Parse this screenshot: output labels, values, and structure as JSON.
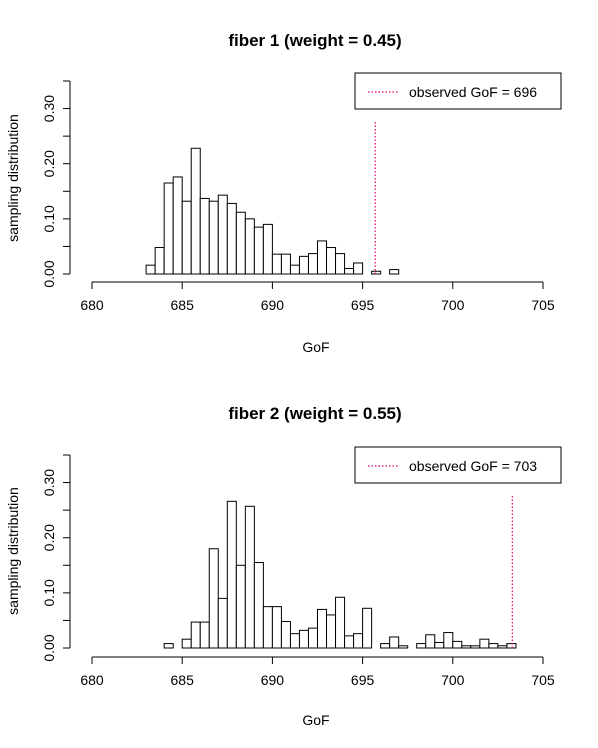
{
  "colors": {
    "observed_line": "#e0006e",
    "bar_fill": "#ffffff",
    "bar_stroke": "#000000"
  },
  "chart_data": [
    {
      "type": "bar",
      "title": "fiber 1 (weight = 0.45)",
      "xlabel": "GoF",
      "ylabel": "sampling distribution",
      "xlim": [
        680,
        705
      ],
      "ylim": [
        0,
        0.35
      ],
      "xticks": [
        "680",
        "685",
        "690",
        "695",
        "700",
        "705"
      ],
      "yticks": [
        "0.00",
        "0.10",
        "0.20",
        "0.30"
      ],
      "bin_width": 0.5,
      "bins": [
        {
          "x0": 683.0,
          "value": 0.016
        },
        {
          "x0": 683.5,
          "value": 0.048
        },
        {
          "x0": 684.0,
          "value": 0.165
        },
        {
          "x0": 684.5,
          "value": 0.176
        },
        {
          "x0": 685.0,
          "value": 0.132
        },
        {
          "x0": 685.5,
          "value": 0.228
        },
        {
          "x0": 686.0,
          "value": 0.137
        },
        {
          "x0": 686.5,
          "value": 0.132
        },
        {
          "x0": 687.0,
          "value": 0.143
        },
        {
          "x0": 687.5,
          "value": 0.128
        },
        {
          "x0": 688.0,
          "value": 0.112
        },
        {
          "x0": 688.5,
          "value": 0.1
        },
        {
          "x0": 689.0,
          "value": 0.085
        },
        {
          "x0": 689.5,
          "value": 0.09
        },
        {
          "x0": 690.0,
          "value": 0.036
        },
        {
          "x0": 690.5,
          "value": 0.036
        },
        {
          "x0": 691.0,
          "value": 0.016
        },
        {
          "x0": 691.5,
          "value": 0.032
        },
        {
          "x0": 692.0,
          "value": 0.037
        },
        {
          "x0": 692.5,
          "value": 0.06
        },
        {
          "x0": 693.0,
          "value": 0.048
        },
        {
          "x0": 693.5,
          "value": 0.037
        },
        {
          "x0": 694.0,
          "value": 0.01
        },
        {
          "x0": 694.5,
          "value": 0.02
        },
        {
          "x0": 695.0,
          "value": 0.0
        },
        {
          "x0": 695.5,
          "value": 0.005
        },
        {
          "x0": 696.0,
          "value": 0.0
        },
        {
          "x0": 696.5,
          "value": 0.008
        }
      ],
      "observed": {
        "value": 695.7,
        "label": "observed GoF = 696"
      },
      "legend_position": "top-right"
    },
    {
      "type": "bar",
      "title": "fiber 2 (weight = 0.55)",
      "xlabel": "GoF",
      "ylabel": "sampling distribution",
      "xlim": [
        680,
        705
      ],
      "ylim": [
        0,
        0.35
      ],
      "xticks": [
        "680",
        "685",
        "690",
        "695",
        "700",
        "705"
      ],
      "yticks": [
        "0.00",
        "0.10",
        "0.20",
        "0.30"
      ],
      "bin_width": 0.5,
      "bins": [
        {
          "x0": 684.0,
          "value": 0.008
        },
        {
          "x0": 684.5,
          "value": 0.0
        },
        {
          "x0": 685.0,
          "value": 0.016
        },
        {
          "x0": 685.5,
          "value": 0.047
        },
        {
          "x0": 686.0,
          "value": 0.047
        },
        {
          "x0": 686.5,
          "value": 0.18
        },
        {
          "x0": 687.0,
          "value": 0.09
        },
        {
          "x0": 687.5,
          "value": 0.266
        },
        {
          "x0": 688.0,
          "value": 0.15
        },
        {
          "x0": 688.5,
          "value": 0.257
        },
        {
          "x0": 689.0,
          "value": 0.155
        },
        {
          "x0": 689.5,
          "value": 0.075
        },
        {
          "x0": 690.0,
          "value": 0.075
        },
        {
          "x0": 690.5,
          "value": 0.048
        },
        {
          "x0": 691.0,
          "value": 0.026
        },
        {
          "x0": 691.5,
          "value": 0.032
        },
        {
          "x0": 692.0,
          "value": 0.036
        },
        {
          "x0": 692.5,
          "value": 0.07
        },
        {
          "x0": 693.0,
          "value": 0.06
        },
        {
          "x0": 693.5,
          "value": 0.092
        },
        {
          "x0": 694.0,
          "value": 0.022
        },
        {
          "x0": 694.5,
          "value": 0.026
        },
        {
          "x0": 695.0,
          "value": 0.072
        },
        {
          "x0": 695.5,
          "value": 0.0
        },
        {
          "x0": 696.0,
          "value": 0.008
        },
        {
          "x0": 696.5,
          "value": 0.02
        },
        {
          "x0": 697.0,
          "value": 0.004
        },
        {
          "x0": 697.5,
          "value": 0.0
        },
        {
          "x0": 698.0,
          "value": 0.008
        },
        {
          "x0": 698.5,
          "value": 0.024
        },
        {
          "x0": 699.0,
          "value": 0.01
        },
        {
          "x0": 699.5,
          "value": 0.028
        },
        {
          "x0": 700.0,
          "value": 0.012
        },
        {
          "x0": 700.5,
          "value": 0.004
        },
        {
          "x0": 701.0,
          "value": 0.004
        },
        {
          "x0": 701.5,
          "value": 0.016
        },
        {
          "x0": 702.0,
          "value": 0.008
        },
        {
          "x0": 702.5,
          "value": 0.004
        },
        {
          "x0": 703.0,
          "value": 0.008
        }
      ],
      "observed": {
        "value": 703.3,
        "label": "observed GoF = 703"
      },
      "legend_position": "top-right"
    }
  ]
}
